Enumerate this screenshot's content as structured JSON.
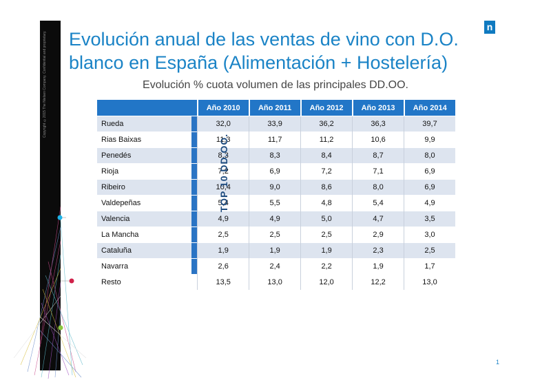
{
  "title": "Evolución anual de las ventas de vino con D.O. blanco en España (Alimentación + Hostelería)",
  "subtitle": "Evolución % cuota volumen de las principales DD.OO.",
  "copyright": "Copyright ©2015 The Nielsen Company. Confidential and proprietary.",
  "logo": "n",
  "group_label": "TOP 10 DD.OO.",
  "page_number": "1",
  "accent_color": "#1a83c6",
  "header_color": "#2276c7",
  "table": {
    "columns": [
      "Año 2010",
      "Año 2011",
      "Año 2012",
      "Año 2013",
      "Año 2014"
    ],
    "rows": [
      {
        "name": "Rueda",
        "values": [
          "32,0",
          "33,9",
          "36,2",
          "36,3",
          "39,7"
        ]
      },
      {
        "name": "Rias Baixas",
        "values": [
          "11,3",
          "11,7",
          "11,2",
          "10,6",
          "9,9"
        ]
      },
      {
        "name": "Penedés",
        "values": [
          "8,3",
          "8,3",
          "8,4",
          "8,7",
          "8,0"
        ]
      },
      {
        "name": "Rioja",
        "values": [
          "7,2",
          "6,9",
          "7,2",
          "7,1",
          "6,9"
        ]
      },
      {
        "name": "Ribeiro",
        "values": [
          "10,4",
          "9,0",
          "8,6",
          "8,0",
          "6,9"
        ]
      },
      {
        "name": "Valdepeñas",
        "values": [
          "5,4",
          "5,5",
          "4,8",
          "5,4",
          "4,9"
        ]
      },
      {
        "name": "Valencia",
        "values": [
          "4,9",
          "4,9",
          "5,0",
          "4,7",
          "3,5"
        ]
      },
      {
        "name": "La Mancha",
        "values": [
          "2,5",
          "2,5",
          "2,5",
          "2,9",
          "3,0"
        ]
      },
      {
        "name": "Cataluña",
        "values": [
          "1,9",
          "1,9",
          "1,9",
          "2,3",
          "2,5"
        ]
      },
      {
        "name": "Navarra",
        "values": [
          "2,6",
          "2,4",
          "2,2",
          "1,9",
          "1,7"
        ]
      }
    ],
    "resto": {
      "name": "Resto",
      "values": [
        "13,5",
        "13,0",
        "12,0",
        "12,2",
        "13,0"
      ]
    }
  }
}
